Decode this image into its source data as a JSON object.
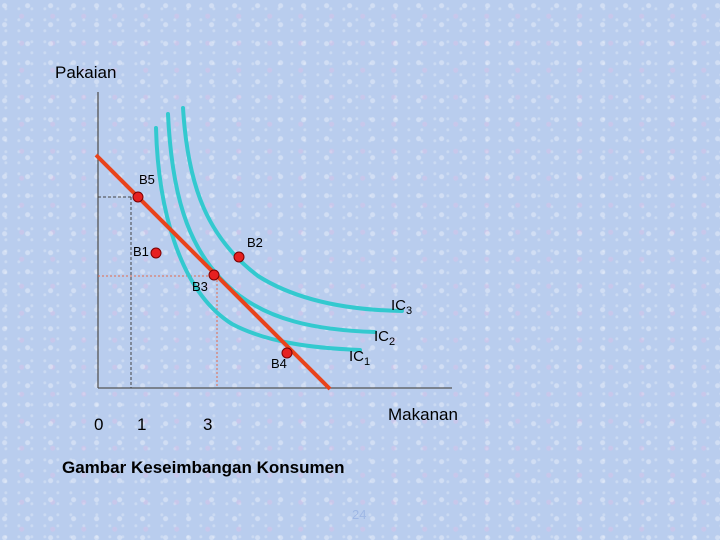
{
  "y_axis_label": "Pakaian",
  "x_axis_label": "Makanan",
  "ticks": {
    "t0": "0",
    "t1": "1",
    "t3": "3"
  },
  "points": {
    "b1": "B1",
    "b2": "B2",
    "b3": "B3",
    "b4": "B4",
    "b5": "B5"
  },
  "curves": {
    "ic1": {
      "base": "IC",
      "sub": "1"
    },
    "ic2": {
      "base": "IC",
      "sub": "2"
    },
    "ic3": {
      "base": "IC",
      "sub": "3"
    }
  },
  "caption": "Gambar Keseimbangan Konsumen",
  "slide_number": "24",
  "colors": {
    "budget_line": "#e8441c",
    "indifference_curve": "#33c9cf",
    "point_fill": "#e62020",
    "guide_line": "#444444",
    "guide_dotted": "#e26a4e"
  }
}
